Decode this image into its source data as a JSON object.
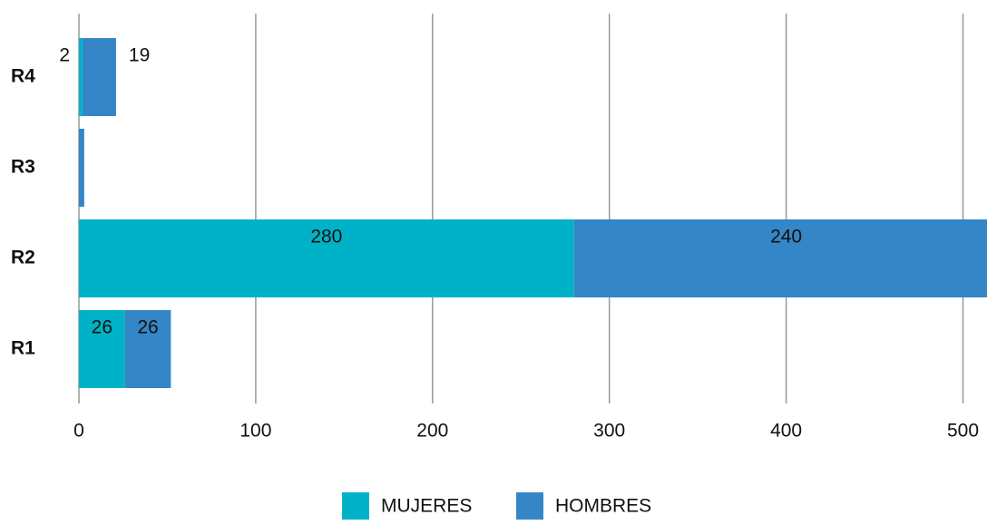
{
  "chart_data": {
    "type": "stacked_barh",
    "categories": [
      "R1",
      "R2",
      "R3",
      "R4"
    ],
    "series": [
      {
        "name": "MUJERES",
        "color": "#00b2c8",
        "values": [
          26,
          280,
          null,
          2
        ],
        "value_labels": [
          "26",
          "280",
          null,
          "2"
        ]
      },
      {
        "name": "HOMBRES",
        "color": "#3586c6",
        "values": [
          26,
          240,
          3,
          19
        ],
        "value_labels": [
          "26",
          "240",
          null,
          "19"
        ]
      }
    ],
    "xlim": [
      0,
      510
    ],
    "xticks": [
      0,
      100,
      200,
      300,
      400,
      500
    ],
    "grid": true,
    "legend": "bottom"
  }
}
